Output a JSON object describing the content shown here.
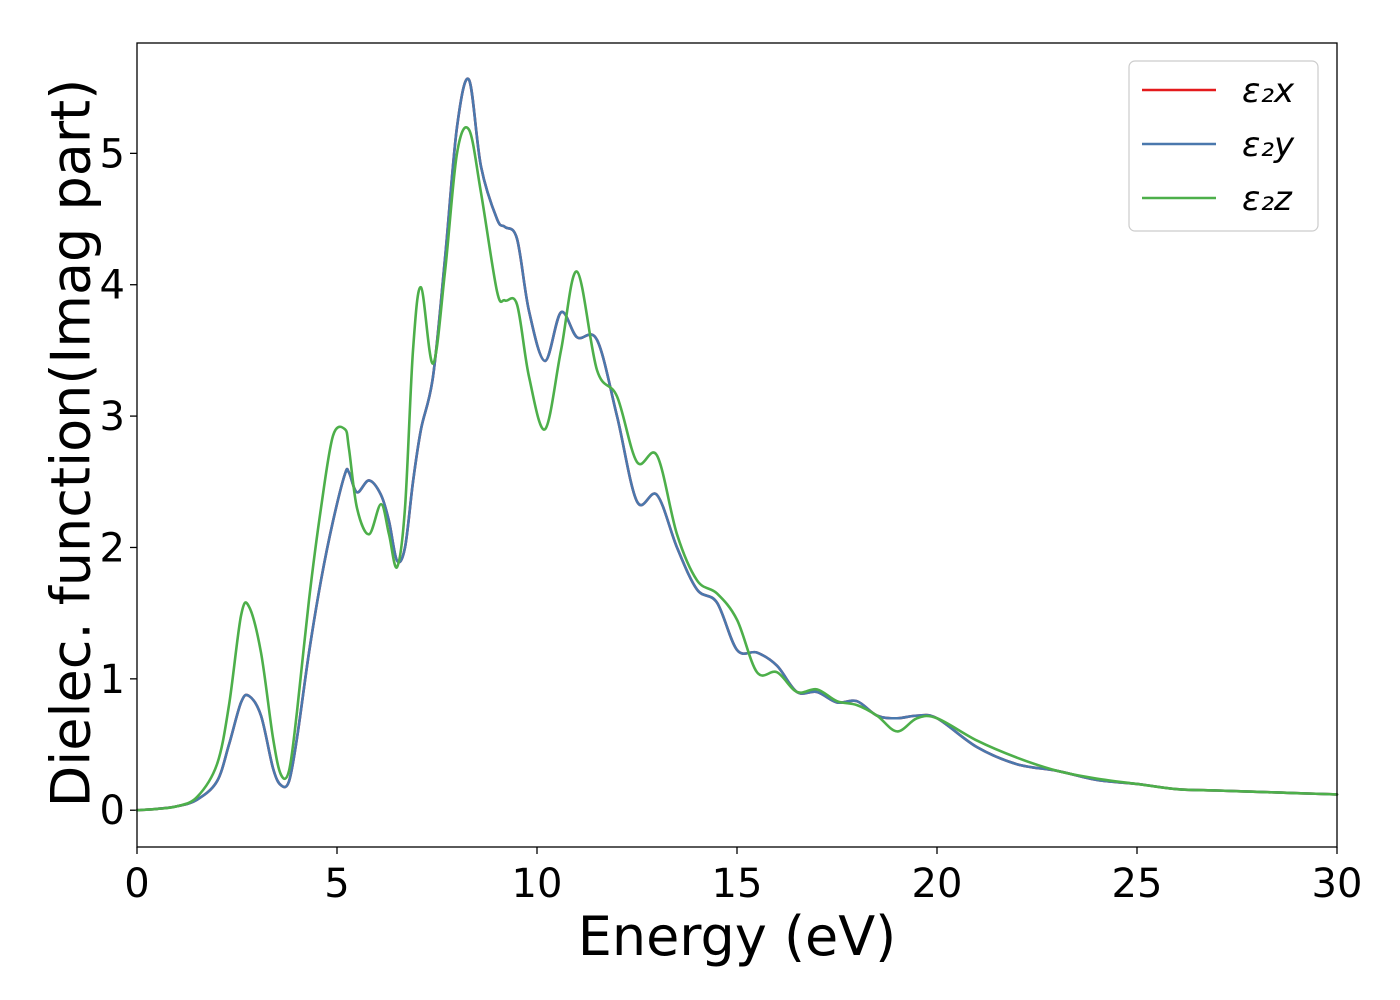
{
  "chart_data": {
    "type": "line",
    "title": "",
    "xlabel": "Energy (eV)",
    "ylabel": "Dielec. function(Imag part)",
    "xlim": [
      0,
      30
    ],
    "ylim": [
      -0.28,
      5.84
    ],
    "xticks": [
      "0",
      "5",
      "10",
      "15",
      "20",
      "25",
      "30"
    ],
    "yticks": [
      "0",
      "1",
      "2",
      "3",
      "4",
      "5"
    ],
    "grid": false,
    "legend_position": "top-right",
    "x": [
      0,
      0.5,
      1,
      1.5,
      2,
      2.3,
      2.6,
      2.8,
      3.1,
      3.4,
      3.6,
      3.8,
      4.0,
      4.3,
      4.6,
      4.9,
      5.2,
      5.3,
      5.5,
      5.8,
      6.1,
      6.3,
      6.5,
      6.7,
      6.9,
      7.1,
      7.4,
      7.7,
      8.0,
      8.3,
      8.6,
      9.0,
      9.2,
      9.5,
      9.8,
      10.2,
      10.6,
      11.0,
      11.5,
      12.0,
      12.5,
      13.0,
      13.5,
      14.0,
      14.5,
      15.0,
      15.5,
      16.0,
      16.5,
      17.0,
      17.5,
      18.0,
      18.5,
      19.0,
      19.5,
      20.0,
      21.0,
      22.0,
      23.0,
      24.0,
      25.0,
      26.0,
      27.0,
      28.0,
      29.0,
      30.0
    ],
    "series": [
      {
        "name": "ε₂x",
        "color": "#e41a1c",
        "values": [
          0.0,
          0.01,
          0.03,
          0.08,
          0.22,
          0.5,
          0.82,
          0.87,
          0.72,
          0.32,
          0.19,
          0.22,
          0.55,
          1.2,
          1.75,
          2.2,
          2.56,
          2.57,
          2.42,
          2.51,
          2.4,
          2.2,
          1.9,
          2.0,
          2.5,
          2.9,
          3.3,
          4.2,
          5.2,
          5.56,
          4.9,
          4.5,
          4.44,
          4.35,
          3.8,
          3.42,
          3.79,
          3.6,
          3.58,
          3.0,
          2.35,
          2.4,
          2.0,
          1.68,
          1.58,
          1.22,
          1.2,
          1.1,
          0.9,
          0.9,
          0.82,
          0.83,
          0.72,
          0.7,
          0.72,
          0.7,
          0.48,
          0.35,
          0.3,
          0.23,
          0.2,
          0.16,
          0.15,
          0.14,
          0.13,
          0.12
        ]
      },
      {
        "name": "ε₂y",
        "color": "#4a78ad",
        "values": [
          0.0,
          0.01,
          0.03,
          0.08,
          0.22,
          0.5,
          0.82,
          0.87,
          0.72,
          0.32,
          0.19,
          0.22,
          0.55,
          1.2,
          1.75,
          2.2,
          2.56,
          2.57,
          2.42,
          2.51,
          2.4,
          2.2,
          1.9,
          2.0,
          2.5,
          2.9,
          3.3,
          4.2,
          5.2,
          5.56,
          4.9,
          4.5,
          4.44,
          4.35,
          3.8,
          3.42,
          3.79,
          3.6,
          3.58,
          3.0,
          2.35,
          2.4,
          2.0,
          1.68,
          1.58,
          1.22,
          1.2,
          1.1,
          0.9,
          0.9,
          0.82,
          0.83,
          0.72,
          0.7,
          0.72,
          0.7,
          0.48,
          0.35,
          0.3,
          0.23,
          0.2,
          0.16,
          0.15,
          0.14,
          0.13,
          0.12
        ]
      },
      {
        "name": "ε₂z",
        "color": "#4daf4a",
        "values": [
          0.0,
          0.01,
          0.03,
          0.1,
          0.35,
          0.8,
          1.48,
          1.55,
          1.2,
          0.55,
          0.27,
          0.3,
          0.75,
          1.6,
          2.3,
          2.85,
          2.9,
          2.75,
          2.3,
          2.1,
          2.33,
          2.1,
          1.85,
          2.3,
          3.5,
          3.98,
          3.4,
          4.1,
          5.0,
          5.18,
          4.7,
          3.95,
          3.88,
          3.85,
          3.3,
          2.9,
          3.5,
          4.1,
          3.35,
          3.15,
          2.65,
          2.7,
          2.1,
          1.75,
          1.65,
          1.45,
          1.05,
          1.05,
          0.9,
          0.92,
          0.83,
          0.8,
          0.72,
          0.6,
          0.7,
          0.7,
          0.53,
          0.4,
          0.3,
          0.24,
          0.2,
          0.16,
          0.15,
          0.14,
          0.13,
          0.12
        ]
      }
    ]
  }
}
